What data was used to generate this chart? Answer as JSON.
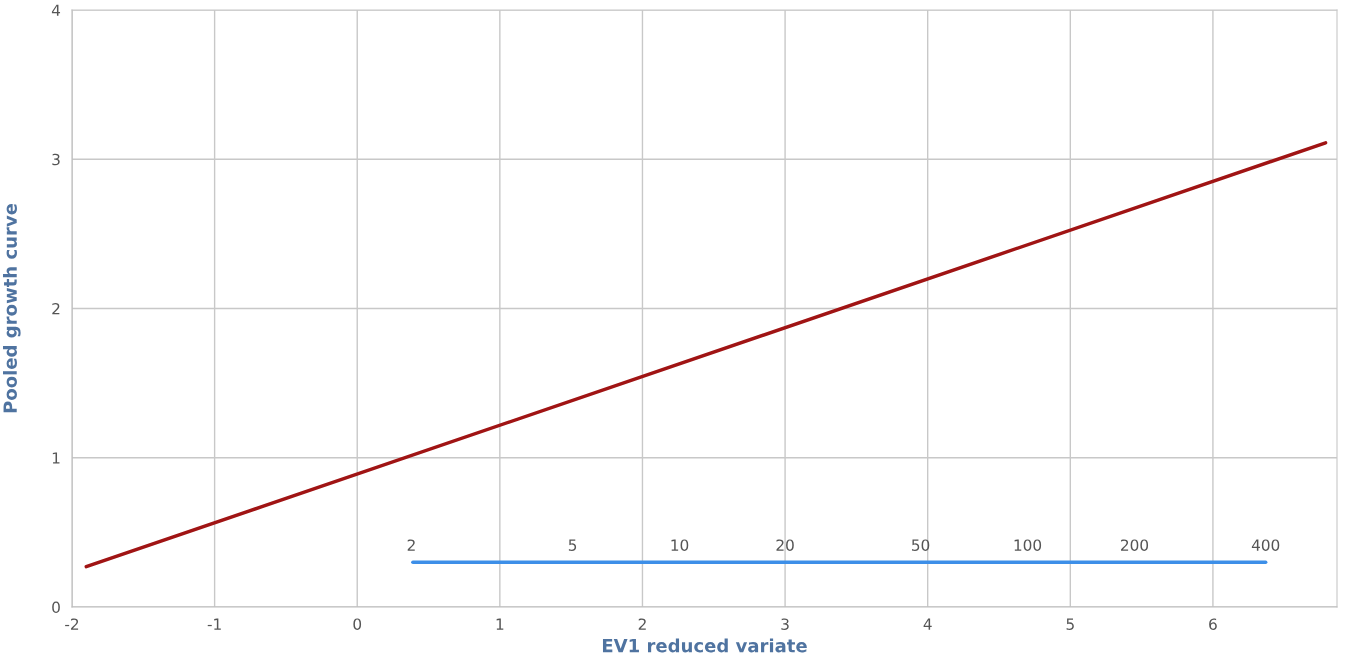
{
  "chart_data": {
    "type": "line",
    "xlabel": "EV1 reduced variate",
    "ylabel": "Pooled growth curve",
    "series": [
      {
        "color": "#a01414",
        "x": [
          -1.9,
          6.79
        ],
        "values": [
          0.27,
          3.11
        ]
      },
      {
        "color": "#3d8fe8",
        "x": [
          0.39,
          6.37
        ],
        "values": [
          0.3,
          0.3
        ]
      }
    ],
    "annotations": [
      {
        "text": "2",
        "x": 0.38,
        "y": 0.3
      },
      {
        "text": "5",
        "x": 1.51,
        "y": 0.3
      },
      {
        "text": "10",
        "x": 2.26,
        "y": 0.3
      },
      {
        "text": "20",
        "x": 3.0,
        "y": 0.3
      },
      {
        "text": "50",
        "x": 3.95,
        "y": 0.3
      },
      {
        "text": "100",
        "x": 4.7,
        "y": 0.3
      },
      {
        "text": "200",
        "x": 5.45,
        "y": 0.3
      },
      {
        "text": "400",
        "x": 6.37,
        "y": 0.3
      }
    ],
    "xlim": [
      -2,
      6.87
    ],
    "xticks": [
      -2,
      -1,
      0,
      1,
      2,
      3,
      4,
      5,
      6
    ],
    "ylim": [
      0,
      4
    ],
    "yticks": [
      0,
      1,
      2,
      3,
      4
    ],
    "grid": true,
    "marker": "none",
    "line_style": "solid"
  }
}
